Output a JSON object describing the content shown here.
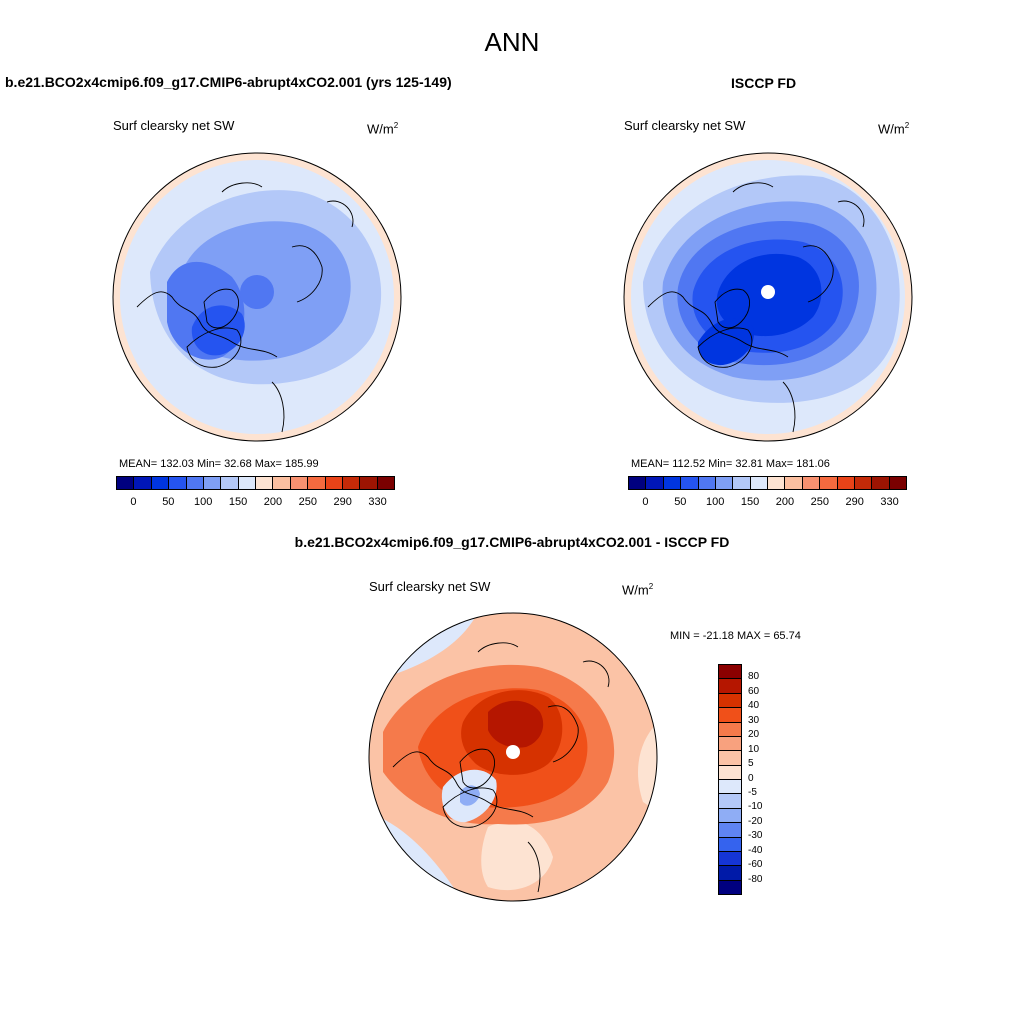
{
  "figure": {
    "title": "ANN"
  },
  "panels": [
    {
      "title": "b.e21.BCO2x4cmip6.f09_g17.CMIP6-abrupt4xCO2.001 (yrs 125-149)",
      "subtitle": "Surf clearsky net SW",
      "units_base": "W/m",
      "units_exp": "2",
      "stats": "MEAN= 132.03  Min=  32.68  Max= 185.99",
      "mean": 132.03,
      "min": 32.68,
      "max": 185.99,
      "colorbar_ticks": [
        "0",
        "50",
        "100",
        "150",
        "200",
        "250",
        "290",
        "330"
      ]
    },
    {
      "title": "ISCCP FD",
      "subtitle": "Surf clearsky net SW",
      "units_base": "W/m",
      "units_exp": "2",
      "stats": "MEAN= 112.52  Min=  32.81  Max= 181.06",
      "mean": 112.52,
      "min": 32.81,
      "max": 181.06,
      "colorbar_ticks": [
        "0",
        "50",
        "100",
        "150",
        "200",
        "250",
        "290",
        "330"
      ]
    },
    {
      "title": "b.e21.BCO2x4cmip6.f09_g17.CMIP6-abrupt4xCO2.001 - ISCCP FD",
      "subtitle": "Surf clearsky net SW",
      "units_base": "W/m",
      "units_exp": "2",
      "stats": "MIN = -21.18 MAX =  65.74",
      "min": -21.18,
      "max": 65.74,
      "colorbar_ticks": [
        "80",
        "60",
        "40",
        "30",
        "20",
        "10",
        "5",
        "0",
        "-5",
        "-10",
        "-20",
        "-30",
        "-40",
        "-60",
        "-80"
      ]
    }
  ],
  "colors": {
    "abs_scale": [
      "#00007f",
      "#0016b8",
      "#0035e0",
      "#2554f0",
      "#5077f2",
      "#7f9ff5",
      "#b3c8f8",
      "#dde8fb",
      "#fde3d2",
      "#fbbfa0",
      "#f89170",
      "#f56a3f",
      "#e94318",
      "#c42a08",
      "#9c1402",
      "#7a0000"
    ],
    "diff_scale": [
      "#8b0000",
      "#b51600",
      "#d63200",
      "#f05019",
      "#f57a4b",
      "#f8a17e",
      "#fbc3a6",
      "#fde3d2",
      "#dde8fb",
      "#b3c8f8",
      "#8fadf5",
      "#5f84f2",
      "#3563ee",
      "#1535d6",
      "#001aa8",
      "#00007f"
    ]
  },
  "chart_data": [
    {
      "type": "heatmap",
      "title": "b.e21.BCO2x4cmip6.f09_g17.CMIP6-abrupt4xCO2.001 (yrs 125-149)",
      "variable": "Surf clearsky net SW",
      "units": "W/m2",
      "projection": "north polar stereographic",
      "levels": [
        0,
        25,
        50,
        75,
        100,
        125,
        150,
        175,
        200,
        225,
        250,
        270,
        290,
        310,
        330
      ],
      "mean": 132.03,
      "min": 32.68,
      "max": 185.99
    },
    {
      "type": "heatmap",
      "title": "ISCCP FD",
      "variable": "Surf clearsky net SW",
      "units": "W/m2",
      "projection": "north polar stereographic",
      "levels": [
        0,
        25,
        50,
        75,
        100,
        125,
        150,
        175,
        200,
        225,
        250,
        270,
        290,
        310,
        330
      ],
      "mean": 112.52,
      "min": 32.81,
      "max": 181.06
    },
    {
      "type": "heatmap",
      "title": "b.e21.BCO2x4cmip6.f09_g17.CMIP6-abrupt4xCO2.001 - ISCCP FD",
      "variable": "Surf clearsky net SW",
      "units": "W/m2",
      "projection": "north polar stereographic",
      "levels": [
        -80,
        -60,
        -40,
        -30,
        -20,
        -10,
        -5,
        0,
        5,
        10,
        20,
        30,
        40,
        60,
        80
      ],
      "min": -21.18,
      "max": 65.74
    }
  ]
}
